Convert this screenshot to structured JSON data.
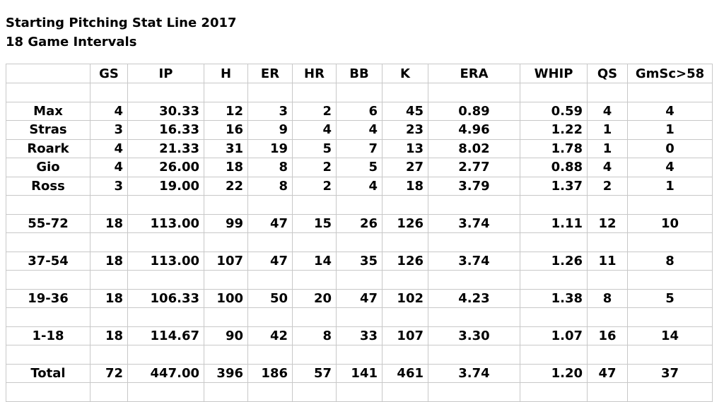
{
  "header": {
    "title": "Starting Pitching Stat Line 2017",
    "subtitle": "18 Game Intervals"
  },
  "table": {
    "columns": [
      "GS",
      "IP",
      "H",
      "ER",
      "HR",
      "BB",
      "K",
      "ERA",
      "WHIP",
      "QS",
      "GmSc>58"
    ],
    "rows": [
      [
        "Max",
        "4",
        "30.33",
        "12",
        "3",
        "2",
        "6",
        "45",
        "0.89",
        "0.59",
        "4",
        "4"
      ],
      [
        "Stras",
        "3",
        "16.33",
        "16",
        "9",
        "4",
        "4",
        "23",
        "4.96",
        "1.22",
        "1",
        "1"
      ],
      [
        "Roark",
        "4",
        "21.33",
        "31",
        "19",
        "5",
        "7",
        "13",
        "8.02",
        "1.78",
        "1",
        "0"
      ],
      [
        "Gio",
        "4",
        "26.00",
        "18",
        "8",
        "2",
        "5",
        "27",
        "2.77",
        "0.88",
        "4",
        "4"
      ],
      [
        "Ross",
        "3",
        "19.00",
        "22",
        "8",
        "2",
        "4",
        "18",
        "3.79",
        "1.37",
        "2",
        "1"
      ],
      [
        "55-72",
        "18",
        "113.00",
        "99",
        "47",
        "15",
        "26",
        "126",
        "3.74",
        "1.11",
        "12",
        "10"
      ],
      [
        "37-54",
        "18",
        "113.00",
        "107",
        "47",
        "14",
        "35",
        "126",
        "3.74",
        "1.26",
        "11",
        "8"
      ],
      [
        "19-36",
        "18",
        "106.33",
        "100",
        "50",
        "20",
        "47",
        "102",
        "4.23",
        "1.38",
        "8",
        "5"
      ],
      [
        "1-18",
        "18",
        "114.67",
        "90",
        "42",
        "8",
        "33",
        "107",
        "3.30",
        "1.07",
        "16",
        "14"
      ],
      [
        "Total",
        "72",
        "447.00",
        "396",
        "186",
        "57",
        "141",
        "461",
        "3.74",
        "1.20",
        "47",
        "37"
      ]
    ]
  }
}
